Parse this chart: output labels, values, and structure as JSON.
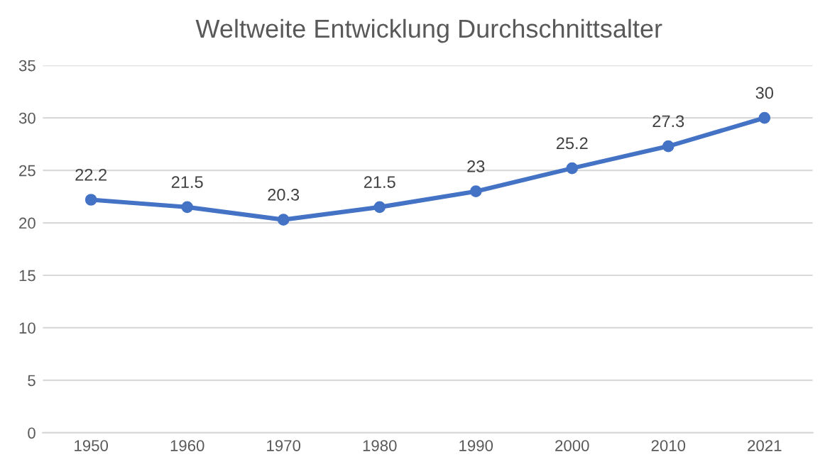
{
  "chart_data": {
    "type": "line",
    "title": "Weltweite Entwicklung Durchschnittsalter",
    "categories": [
      "1950",
      "1960",
      "1970",
      "1980",
      "1990",
      "2000",
      "2010",
      "2021"
    ],
    "series": [
      {
        "color": "#4472c4",
        "values": [
          22.2,
          21.5,
          20.3,
          21.5,
          23,
          25.2,
          27.3,
          30
        ]
      }
    ],
    "ylim": [
      0,
      35
    ],
    "yticks": [
      0,
      5,
      10,
      15,
      20,
      25,
      30,
      35
    ],
    "grid": "y",
    "marker": "circle",
    "line_style": "solid",
    "data_labels": true
  }
}
